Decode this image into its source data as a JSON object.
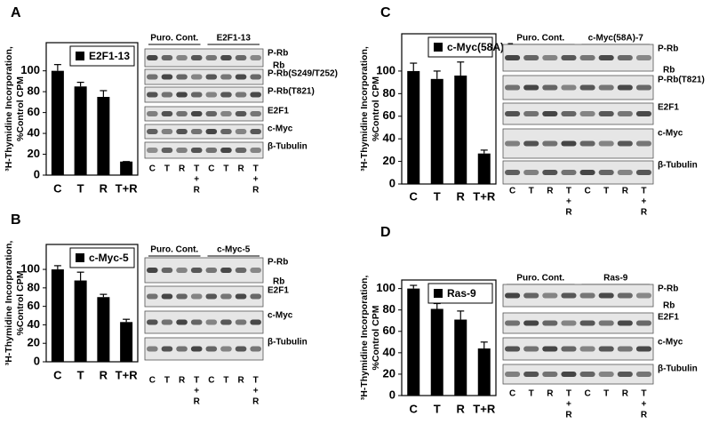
{
  "panel_labels": [
    "A",
    "B",
    "C",
    "D"
  ],
  "chart_data": [
    {
      "type": "bar",
      "categories": [
        "C",
        "T",
        "R",
        "T+R"
      ],
      "series": [
        {
          "name": "E2F1-13",
          "color": "#000000",
          "values": [
            100,
            85,
            75,
            13
          ],
          "errors": [
            6,
            4,
            6,
            0
          ]
        }
      ],
      "ylim": [
        0,
        127
      ],
      "yticks": [
        0,
        20,
        40,
        60,
        80,
        100
      ],
      "y_label": [
        "³H-Thymidine Incorporation,",
        "%Control CPM"
      ],
      "legend": "upper right"
    },
    {
      "type": "bar",
      "categories": [
        "C",
        "T",
        "R",
        "T+R"
      ],
      "series": [
        {
          "name": "c-Myc-5",
          "color": "#000000",
          "values": [
            100,
            88,
            70,
            43
          ],
          "errors": [
            4,
            9,
            3,
            3
          ]
        }
      ],
      "ylim": [
        0,
        127
      ],
      "yticks": [
        0,
        20,
        40,
        60,
        80,
        100
      ],
      "y_label": [
        "³H-Thymidine Incorporation,",
        "%Control CPM"
      ],
      "legend": "upper right"
    },
    {
      "type": "bar",
      "categories": [
        "C",
        "T",
        "R",
        "T+R"
      ],
      "series": [
        {
          "name": "c-Myc(58A)-7",
          "color": "#000000",
          "values": [
            100,
            93,
            96,
            27
          ],
          "errors": [
            7,
            7,
            12,
            3
          ]
        }
      ],
      "ylim": [
        0,
        133
      ],
      "yticks": [
        0,
        20,
        40,
        60,
        80,
        100
      ],
      "y_label": [
        "³H-Thymidine Incorporation,",
        "%Control CPM"
      ],
      "legend": "upper right"
    },
    {
      "type": "bar",
      "categories": [
        "C",
        "T",
        "R",
        "T+R"
      ],
      "series": [
        {
          "name": "Ras-9",
          "color": "#000000",
          "values": [
            100,
            81,
            71,
            44
          ],
          "errors": [
            3,
            5,
            8,
            6
          ]
        }
      ],
      "ylim": [
        0,
        108
      ],
      "yticks": [
        0,
        20,
        40,
        60,
        80,
        100
      ],
      "y_label": [
        "³H-Thymidine Incorporation,",
        "%Control CPM"
      ],
      "legend": "upper right"
    }
  ],
  "blots": [
    {
      "groups": [
        "Puro. Cont.",
        "E2F1-13"
      ],
      "rows": [
        [
          "P-Rb",
          "Rb"
        ],
        [
          "P-Rb(S249/T252)"
        ],
        [
          "P-Rb(T821)"
        ],
        [
          "E2F1"
        ],
        [
          "c-Myc"
        ],
        [
          "β-Tubulin"
        ]
      ],
      "lanes": [
        [
          "C"
        ],
        [
          "T"
        ],
        [
          "R"
        ],
        [
          "T",
          "+",
          "R"
        ],
        [
          "C"
        ],
        [
          "T"
        ],
        [
          "R"
        ],
        [
          "T",
          "+",
          "R"
        ]
      ]
    },
    {
      "groups": [
        "Puro. Cont.",
        "c-Myc-5"
      ],
      "rows": [
        [
          "P-Rb",
          "Rb"
        ],
        [
          "E2F1"
        ],
        [
          "c-Myc"
        ],
        [
          "β-Tubulin"
        ]
      ],
      "lanes": [
        [
          "C"
        ],
        [
          "T"
        ],
        [
          "R"
        ],
        [
          "T",
          "+",
          "R"
        ],
        [
          "C"
        ],
        [
          "T"
        ],
        [
          "R"
        ],
        [
          "T",
          "+",
          "R"
        ]
      ]
    },
    {
      "groups": [
        "Puro. Cont.",
        "c-Myc(58A)-7"
      ],
      "rows": [
        [
          "P-Rb",
          "Rb"
        ],
        [
          "P-Rb(T821)"
        ],
        [
          "E2F1"
        ],
        [
          "c-Myc"
        ],
        [
          "β-Tubulin"
        ]
      ],
      "lanes": [
        [
          "C"
        ],
        [
          "T"
        ],
        [
          "R"
        ],
        [
          "T",
          "+",
          "R"
        ],
        [
          "C"
        ],
        [
          "T"
        ],
        [
          "R"
        ],
        [
          "T",
          "+",
          "R"
        ]
      ]
    },
    {
      "groups": [
        "Puro. Cont.",
        "Ras-9"
      ],
      "rows": [
        [
          "P-Rb",
          "Rb"
        ],
        [
          "E2F1"
        ],
        [
          "c-Myc"
        ],
        [
          "β-Tubulin"
        ]
      ],
      "lanes": [
        [
          "C"
        ],
        [
          "T"
        ],
        [
          "R"
        ],
        [
          "T",
          "+",
          "R"
        ],
        [
          "C"
        ],
        [
          "T"
        ],
        [
          "R"
        ],
        [
          "T",
          "+",
          "R"
        ]
      ]
    }
  ]
}
